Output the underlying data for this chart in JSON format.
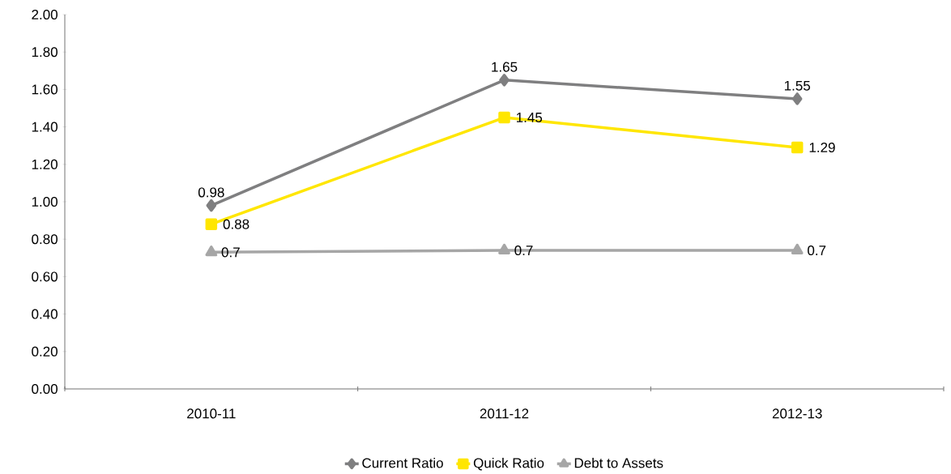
{
  "chart_data": {
    "type": "line",
    "categories": [
      "2010-11",
      "2011-12",
      "2012-13"
    ],
    "series": [
      {
        "name": "Current Ratio",
        "color": "#7f7f80",
        "marker": "diamond",
        "values": [
          0.98,
          1.65,
          1.55
        ],
        "value_labels": [
          "0.98",
          "1.65",
          "1.55"
        ]
      },
      {
        "name": "Quick Ratio",
        "color": "#ffe600",
        "marker": "square",
        "values": [
          0.88,
          1.45,
          1.29
        ],
        "value_labels": [
          "0.88",
          "1.45",
          "1.29"
        ]
      },
      {
        "name": "Debt to Assets",
        "color": "#a6a6a6",
        "marker": "triangle",
        "values": [
          0.73,
          0.74,
          0.74
        ],
        "value_labels": [
          "0.7",
          "0.7",
          "0.7"
        ]
      }
    ],
    "ylim": [
      0,
      2
    ],
    "yticks": [
      {
        "value": 0,
        "label": "0.00"
      },
      {
        "value": 0.2,
        "label": "0.20"
      },
      {
        "value": 0.4,
        "label": "0.40"
      },
      {
        "value": 0.6,
        "label": "0.60"
      },
      {
        "value": 0.8,
        "label": "0.80"
      },
      {
        "value": 1,
        "label": "1.00"
      },
      {
        "value": 1.2,
        "label": "1.20"
      },
      {
        "value": 1.4,
        "label": "1.40"
      },
      {
        "value": 1.6,
        "label": "1.60"
      },
      {
        "value": 1.8,
        "label": "1.80"
      },
      {
        "value": 2,
        "label": "2.00"
      }
    ],
    "legend": "bottom",
    "grid": false,
    "line_style": "solid"
  }
}
